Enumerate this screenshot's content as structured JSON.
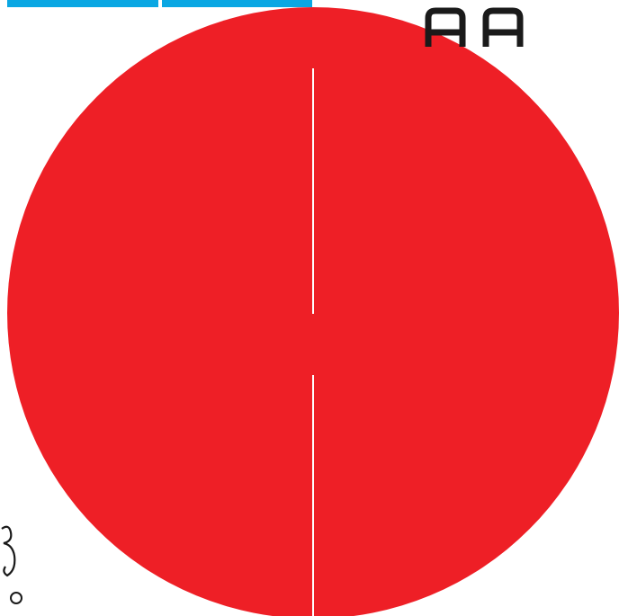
{
  "colors": {
    "background": "#ffffff",
    "disc": "#ee1f26",
    "divider": "#ffffff",
    "top_bar": "#0aa7e3",
    "glyph": "#1a1a1a"
  },
  "icons": {
    "corner": "twin-arch-glyph",
    "edge": "script-character-glyph"
  }
}
